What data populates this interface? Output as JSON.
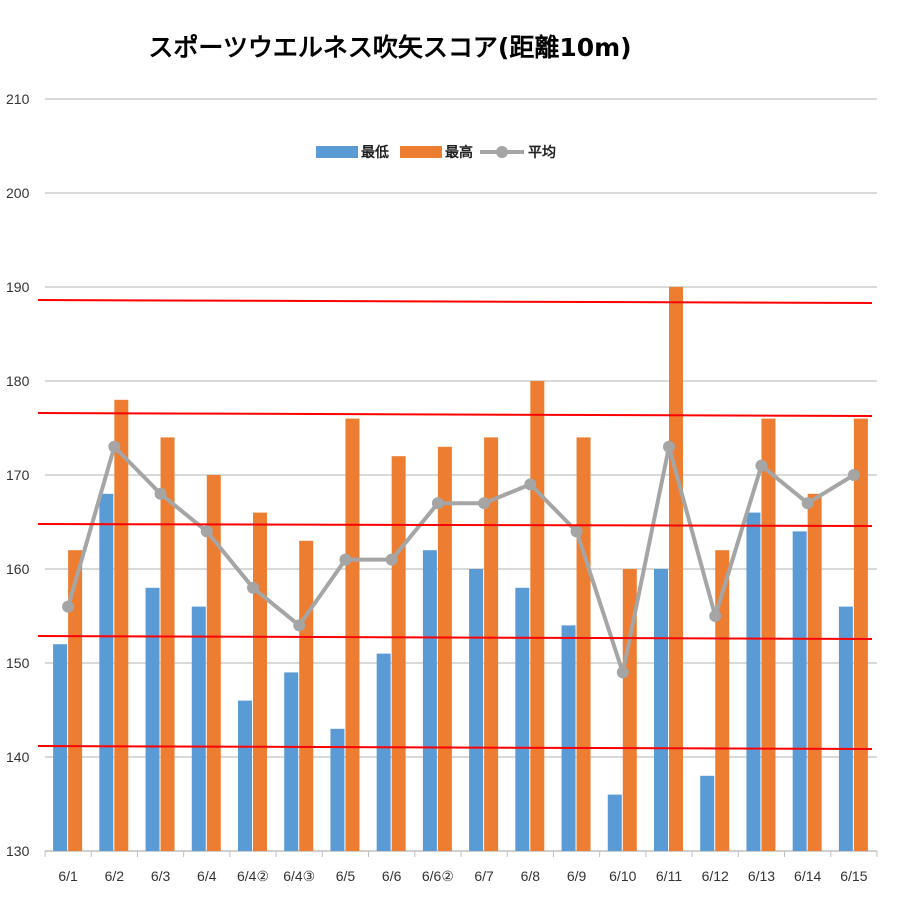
{
  "chart_data": {
    "type": "bar",
    "title": "スポーツウエルネス吹矢スコア(距離10m)",
    "xlabel": "",
    "ylabel": "",
    "ylim": [
      130,
      210
    ],
    "yticks": [
      130,
      140,
      150,
      160,
      170,
      180,
      190,
      200,
      210
    ],
    "grid": true,
    "legend_position": "top",
    "categories": [
      "6/1",
      "6/2",
      "6/3",
      "6/4",
      "6/4②",
      "6/4③",
      "6/5",
      "6/6",
      "6/6②",
      "6/7",
      "6/8",
      "6/9",
      "6/10",
      "6/11",
      "6/12",
      "6/13",
      "6/14",
      "6/15"
    ],
    "series": [
      {
        "name": "最低",
        "type": "bar",
        "color": "#5B9BD5",
        "values": [
          152,
          168,
          158,
          156,
          146,
          149,
          143,
          151,
          162,
          160,
          158,
          154,
          136,
          160,
          138,
          166,
          164,
          156
        ]
      },
      {
        "name": "最高",
        "type": "bar",
        "color": "#ED7D31",
        "values": [
          162,
          178,
          174,
          170,
          166,
          163,
          176,
          172,
          173,
          174,
          180,
          174,
          160,
          190,
          162,
          176,
          168,
          176
        ]
      },
      {
        "name": "平均",
        "type": "line",
        "color": "#A5A5A5",
        "values": [
          156,
          173,
          168,
          164,
          158,
          154,
          161,
          161,
          167,
          167,
          169,
          164,
          149,
          173,
          155,
          171,
          167,
          170
        ]
      }
    ],
    "reference_line_color": "#FF0000"
  }
}
